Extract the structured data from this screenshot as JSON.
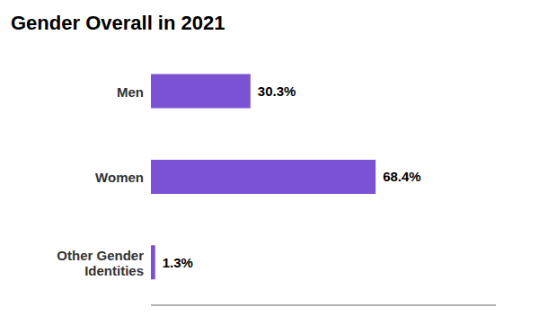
{
  "chart_data": {
    "type": "bar",
    "title": "Gender Overall in 2021",
    "orientation": "horizontal",
    "categories": [
      "Men",
      "Women",
      "Other Gender\nIdentities"
    ],
    "values": [
      30.3,
      68.4,
      1.3
    ],
    "value_labels": [
      "30.3%",
      "68.4%",
      "1.3%"
    ],
    "data_labels": true,
    "color": "#7B52D3",
    "xlim": [
      0,
      105
    ],
    "grid": false,
    "tick_labels": "y"
  }
}
